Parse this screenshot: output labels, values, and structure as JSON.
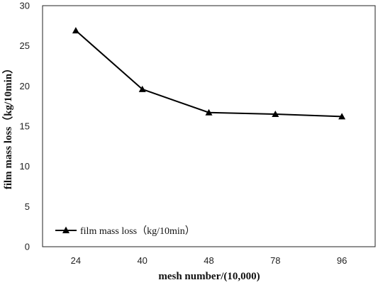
{
  "chart_data": {
    "type": "line",
    "categories": [
      "24",
      "40",
      "48",
      "78",
      "96"
    ],
    "series": [
      {
        "name": "film  mass loss（kg/10min）",
        "values": [
          26.9,
          19.6,
          16.7,
          16.5,
          16.2
        ],
        "color": "#000000",
        "marker": "triangle"
      }
    ],
    "title": "",
    "xlabel": "mesh number/(10,000)",
    "ylabel": "film mass loss（kg/10min）",
    "ylim": [
      0,
      30
    ],
    "yticks": [
      "0",
      "5",
      "10",
      "15",
      "20",
      "25",
      "30"
    ],
    "grid": false,
    "legend_position": "bottom-left"
  }
}
